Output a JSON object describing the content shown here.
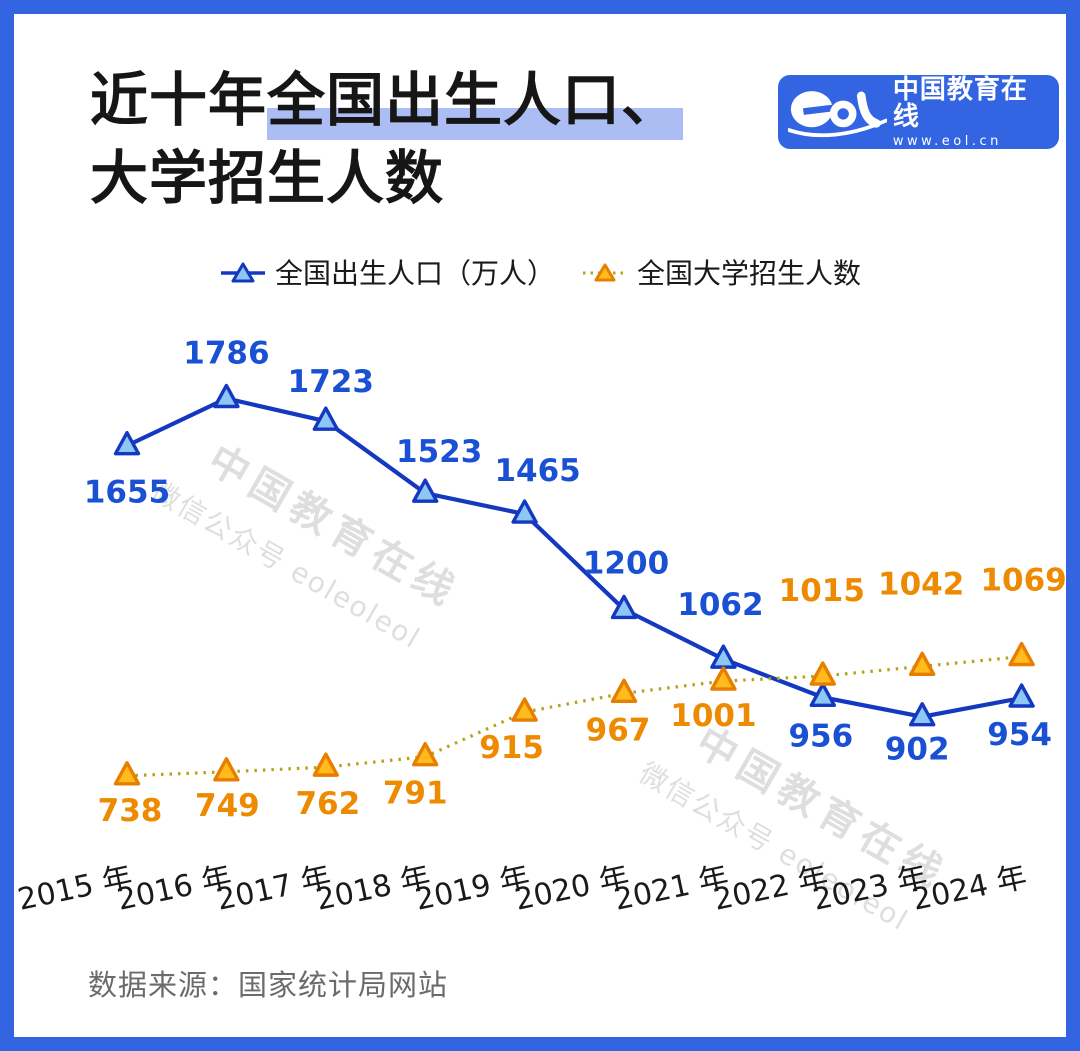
{
  "colors": {
    "accent_blue": "#3365E3",
    "highlight": "#ABBDF2",
    "axis_text": "#1A1A1A",
    "source_text": "#6B6B6B"
  },
  "title": {
    "prefix": "近十年",
    "highlight": "全国出生人口、",
    "line2": "大学招生人数"
  },
  "logo": {
    "brand": "eol",
    "name": "中国教育在线",
    "url": "www.eol.cn"
  },
  "watermark": {
    "line1": "中国教育在线",
    "line2": "微信公众号 eoleoleol"
  },
  "source": {
    "text": "数据来源：国家统计局网站"
  },
  "chart_data": {
    "type": "line",
    "title": "近十年全国出生人口、大学招生人数",
    "x": [
      "2015 年",
      "2016 年",
      "2017 年",
      "2018 年",
      "2019 年",
      "2020 年",
      "2021 年",
      "2022 年",
      "2023 年",
      "2024 年"
    ],
    "grid": false,
    "legend_position": "top",
    "series": [
      {
        "id": "births",
        "name": "全国出生人口（万人）",
        "values": [
          1655,
          1786,
          1723,
          1523,
          1465,
          1200,
          1062,
          956,
          902,
          954
        ],
        "line_style": "solid",
        "line_color": "#1538C0",
        "marker": "triangle",
        "marker_fill": "#8EC6F4",
        "marker_stroke": "#1538C0",
        "label_color": "#1A50D4"
      },
      {
        "id": "enrollment",
        "name": "全国大学招生人数",
        "values": [
          738,
          749,
          762,
          791,
          915,
          967,
          1001,
          1015,
          1042,
          1069
        ],
        "line_style": "dotted",
        "line_color": "#B5A319",
        "marker": "triangle",
        "marker_fill": "#FFBC1C",
        "marker_stroke": "#E87E00",
        "label_color": "#EE8A00"
      }
    ]
  }
}
